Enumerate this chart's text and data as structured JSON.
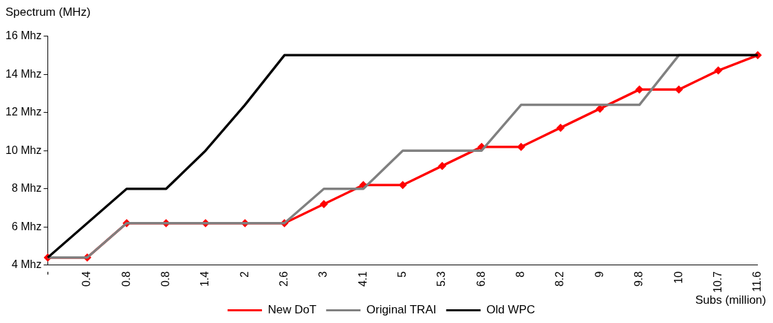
{
  "chart_data": {
    "type": "line",
    "ylabel": "Spectrum (MHz)",
    "xlabel": "Subs (million)",
    "categories": [
      "-",
      "0.4",
      "0.8",
      "0.8",
      "1.4",
      "2",
      "2.6",
      "3",
      "4.1",
      "5",
      "5.3",
      "6.8",
      "8",
      "8.2",
      "9",
      "9.8",
      "10",
      "10.7",
      "11.6"
    ],
    "series": [
      {
        "name": "New DoT",
        "color": "#ff0000",
        "marker": "diamond",
        "values": [
          4.4,
          4.4,
          6.2,
          6.2,
          6.2,
          6.2,
          6.2,
          7.2,
          8.2,
          8.2,
          9.2,
          10.2,
          10.2,
          11.2,
          12.2,
          13.2,
          13.2,
          14.2,
          15
        ]
      },
      {
        "name": "Original TRAI",
        "color": "#808080",
        "marker": "none",
        "values": [
          4.4,
          4.4,
          6.2,
          6.2,
          6.2,
          6.2,
          6.2,
          8,
          8,
          10,
          10,
          10,
          12.4,
          12.4,
          12.4,
          12.4,
          15,
          15,
          15
        ]
      },
      {
        "name": "Old WPC",
        "color": "#000000",
        "marker": "none",
        "values": [
          4.4,
          6.2,
          8,
          8,
          10,
          12.4,
          15,
          15,
          15,
          15,
          15,
          15,
          15,
          15,
          15,
          15,
          15,
          15,
          15
        ]
      }
    ],
    "ylim": [
      4,
      16
    ],
    "yticks": [
      {
        "value": 4,
        "label": "4 Mhz"
      },
      {
        "value": 6,
        "label": "6 Mhz"
      },
      {
        "value": 8,
        "label": "8 Mhz"
      },
      {
        "value": 10,
        "label": "10 Mhz"
      },
      {
        "value": 12,
        "label": "12 Mhz"
      },
      {
        "value": 14,
        "label": "14 Mhz"
      },
      {
        "value": 16,
        "label": "16 Mhz"
      }
    ],
    "grid": false,
    "legend": "bottom"
  }
}
